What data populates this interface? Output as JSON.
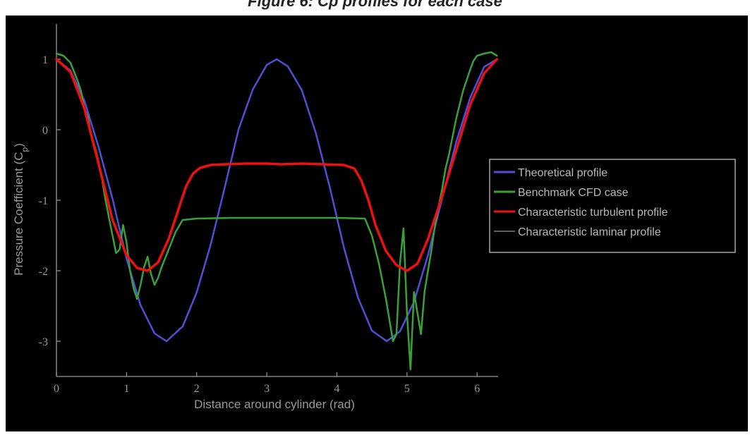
{
  "figure_caption": "Figure 6: Cp profiles for each case",
  "chart_data": {
    "type": "line",
    "title": "",
    "xlabel": "Distance around cylinder (rad)",
    "ylabel": "Pressure Coefficient (C_p)",
    "xlim": [
      0,
      6.3
    ],
    "ylim": [
      -3.5,
      1.5
    ],
    "xticks": [
      0,
      1,
      2,
      3,
      4,
      5,
      6
    ],
    "yticks": [
      -3,
      -2,
      -1,
      0,
      1
    ],
    "xtick_labels": [
      "0",
      "1",
      "2",
      "3",
      "4",
      "5",
      "6"
    ],
    "ytick_labels": [
      "-3",
      "-2",
      "-1",
      "0",
      "1"
    ],
    "grid": false,
    "legend_position": "right",
    "background": "#000000",
    "series": [
      {
        "name": "Theoretical profile",
        "color": "#4f4fd8",
        "x": [
          0,
          0.2,
          0.4,
          0.6,
          0.8,
          1.0,
          1.2,
          1.4,
          1.571,
          1.8,
          2.0,
          2.2,
          2.4,
          2.6,
          2.8,
          3.0,
          3.142,
          3.3,
          3.5,
          3.7,
          3.9,
          4.1,
          4.3,
          4.5,
          4.712,
          4.9,
          5.1,
          5.3,
          5.5,
          5.7,
          5.9,
          6.1,
          6.283
        ],
        "y": [
          1.0,
          0.84,
          0.41,
          -0.24,
          -0.98,
          -1.83,
          -2.49,
          -2.89,
          -3.0,
          -2.79,
          -2.31,
          -1.63,
          -0.82,
          0.01,
          0.57,
          0.92,
          1.0,
          0.9,
          0.56,
          -0.05,
          -0.82,
          -1.67,
          -2.38,
          -2.85,
          -3.0,
          -2.86,
          -2.44,
          -1.78,
          -0.98,
          -0.18,
          0.45,
          0.89,
          1.0
        ]
      },
      {
        "name": "Benchmark CFD case",
        "color": "#3aa13a",
        "x": [
          0,
          0.1,
          0.2,
          0.3,
          0.35,
          0.4,
          0.45,
          0.5,
          0.55,
          0.6,
          0.65,
          0.7,
          0.75,
          0.8,
          0.85,
          0.9,
          0.95,
          1.0,
          1.05,
          1.1,
          1.15,
          1.2,
          1.25,
          1.3,
          1.35,
          1.4,
          1.45,
          1.5,
          1.6,
          1.7,
          1.8,
          2.0,
          2.5,
          3.0,
          3.5,
          4.0,
          4.4,
          4.5,
          4.6,
          4.7,
          4.75,
          4.8,
          4.85,
          4.9,
          4.95,
          5.0,
          5.05,
          5.1,
          5.15,
          5.2,
          5.25,
          5.3,
          5.35,
          5.4,
          5.45,
          5.5,
          5.55,
          5.6,
          5.65,
          5.7,
          5.75,
          5.8,
          5.85,
          5.9,
          5.95,
          6.0,
          6.1,
          6.2,
          6.283
        ],
        "y": [
          1.08,
          1.05,
          0.95,
          0.7,
          0.55,
          0.3,
          0.18,
          -0.1,
          -0.25,
          -0.45,
          -0.7,
          -1.0,
          -1.25,
          -1.5,
          -1.75,
          -1.7,
          -1.35,
          -1.6,
          -2.0,
          -2.25,
          -2.4,
          -2.2,
          -1.95,
          -1.8,
          -2.05,
          -2.2,
          -2.1,
          -1.95,
          -1.7,
          -1.45,
          -1.28,
          -1.26,
          -1.25,
          -1.25,
          -1.25,
          -1.25,
          -1.26,
          -1.5,
          -1.9,
          -2.4,
          -2.7,
          -3.0,
          -2.9,
          -1.9,
          -1.4,
          -2.6,
          -3.4,
          -2.3,
          -2.6,
          -2.9,
          -2.3,
          -2.0,
          -1.7,
          -1.35,
          -1.1,
          -0.85,
          -0.55,
          -0.35,
          -0.1,
          0.15,
          0.35,
          0.55,
          0.7,
          0.85,
          0.98,
          1.05,
          1.08,
          1.1,
          1.05
        ]
      },
      {
        "name": "Characteristic turbulent profile",
        "color": "#ee1111",
        "x": [
          0,
          0.2,
          0.4,
          0.6,
          0.8,
          1.0,
          1.15,
          1.3,
          1.45,
          1.6,
          1.75,
          1.85,
          1.95,
          2.05,
          2.2,
          2.4,
          2.7,
          3.0,
          3.2,
          3.5,
          3.8,
          4.1,
          4.25,
          4.35,
          4.45,
          4.55,
          4.7,
          4.85,
          5.0,
          5.15,
          5.3,
          5.5,
          5.7,
          5.9,
          6.1,
          6.283
        ],
        "y": [
          1.0,
          0.82,
          0.3,
          -0.48,
          -1.28,
          -1.78,
          -1.96,
          -2.0,
          -1.88,
          -1.55,
          -1.1,
          -0.8,
          -0.62,
          -0.54,
          -0.5,
          -0.49,
          -0.48,
          -0.48,
          -0.49,
          -0.48,
          -0.49,
          -0.5,
          -0.55,
          -0.72,
          -1.0,
          -1.35,
          -1.72,
          -1.92,
          -2.0,
          -1.9,
          -1.55,
          -0.95,
          -0.3,
          0.35,
          0.8,
          1.0
        ]
      },
      {
        "name": "Characteristic laminar profile",
        "color": "#7a7a7a",
        "x": [],
        "y": []
      }
    ]
  }
}
